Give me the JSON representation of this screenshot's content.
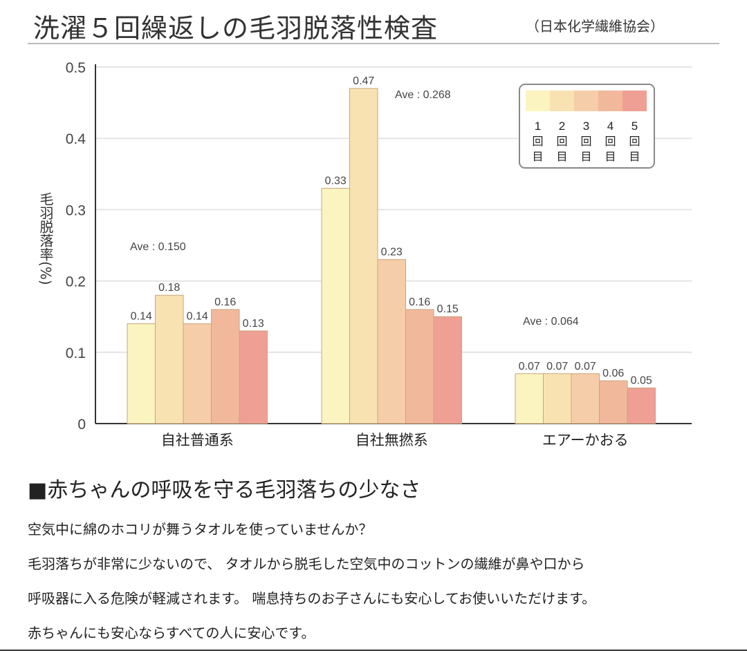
{
  "header": {
    "title": "洗濯５回繰返しの毛羽脱落性検査",
    "org": "（日本化学繊維協会）"
  },
  "colors": [
    "#fbf4c0",
    "#f9e2b2",
    "#f6cda9",
    "#f2b89c",
    "#ef9f94"
  ],
  "chart_data": {
    "type": "bar",
    "ylabel": "毛羽脱落率(%)",
    "ylim": [
      0,
      0.5
    ],
    "yticks": [
      "0",
      "0.1",
      "0.2",
      "0.3",
      "0.4",
      "0.5"
    ],
    "grid": true,
    "categories": [
      "自社普通系",
      "自社無撚系",
      "エアーかおる"
    ],
    "series": [
      {
        "name": "1回目",
        "values": [
          0.14,
          0.33,
          0.07
        ],
        "labels": [
          "0.14",
          "0.33",
          "0.07"
        ]
      },
      {
        "name": "2回目",
        "values": [
          0.18,
          0.47,
          0.07
        ],
        "labels": [
          "0.18",
          "0.47",
          "0.07"
        ]
      },
      {
        "name": "3回目",
        "values": [
          0.14,
          0.23,
          0.07
        ],
        "labels": [
          "0.14",
          "0.23",
          "0.07"
        ]
      },
      {
        "name": "4回目",
        "values": [
          0.16,
          0.16,
          0.06
        ],
        "labels": [
          "0.16",
          "0.16",
          "0.06"
        ]
      },
      {
        "name": "5回目",
        "values": [
          0.13,
          0.15,
          0.05
        ],
        "labels": [
          "0.13",
          "0.15",
          "0.05"
        ]
      }
    ],
    "averages": [
      "Ave : 0.150",
      "Ave : 0.268",
      "Ave : 0.064"
    ],
    "legend": {
      "placement": "top-right",
      "items": [
        {
          "num": "1",
          "l1": "回",
          "l2": "目"
        },
        {
          "num": "2",
          "l1": "回",
          "l2": "目"
        },
        {
          "num": "3",
          "l1": "回",
          "l2": "目"
        },
        {
          "num": "4",
          "l1": "回",
          "l2": "目"
        },
        {
          "num": "5",
          "l1": "回",
          "l2": "目"
        }
      ]
    }
  },
  "section": {
    "heading": "■赤ちゃんの呼吸を守る毛羽落ちの少なさ",
    "paragraphs": [
      "空気中に綿のホコリが舞うタオルを使っていませんか？",
      "毛羽落ちが非常に少ないので、 タオルから脱毛した空気中のコットンの繊維が鼻や口から",
      "呼吸器に入る危険が軽減されます。 喘息持ちのお子さんにも安心してお使いいただけます。",
      "赤ちゃんにも安心ならすべての人に安心です。"
    ]
  }
}
